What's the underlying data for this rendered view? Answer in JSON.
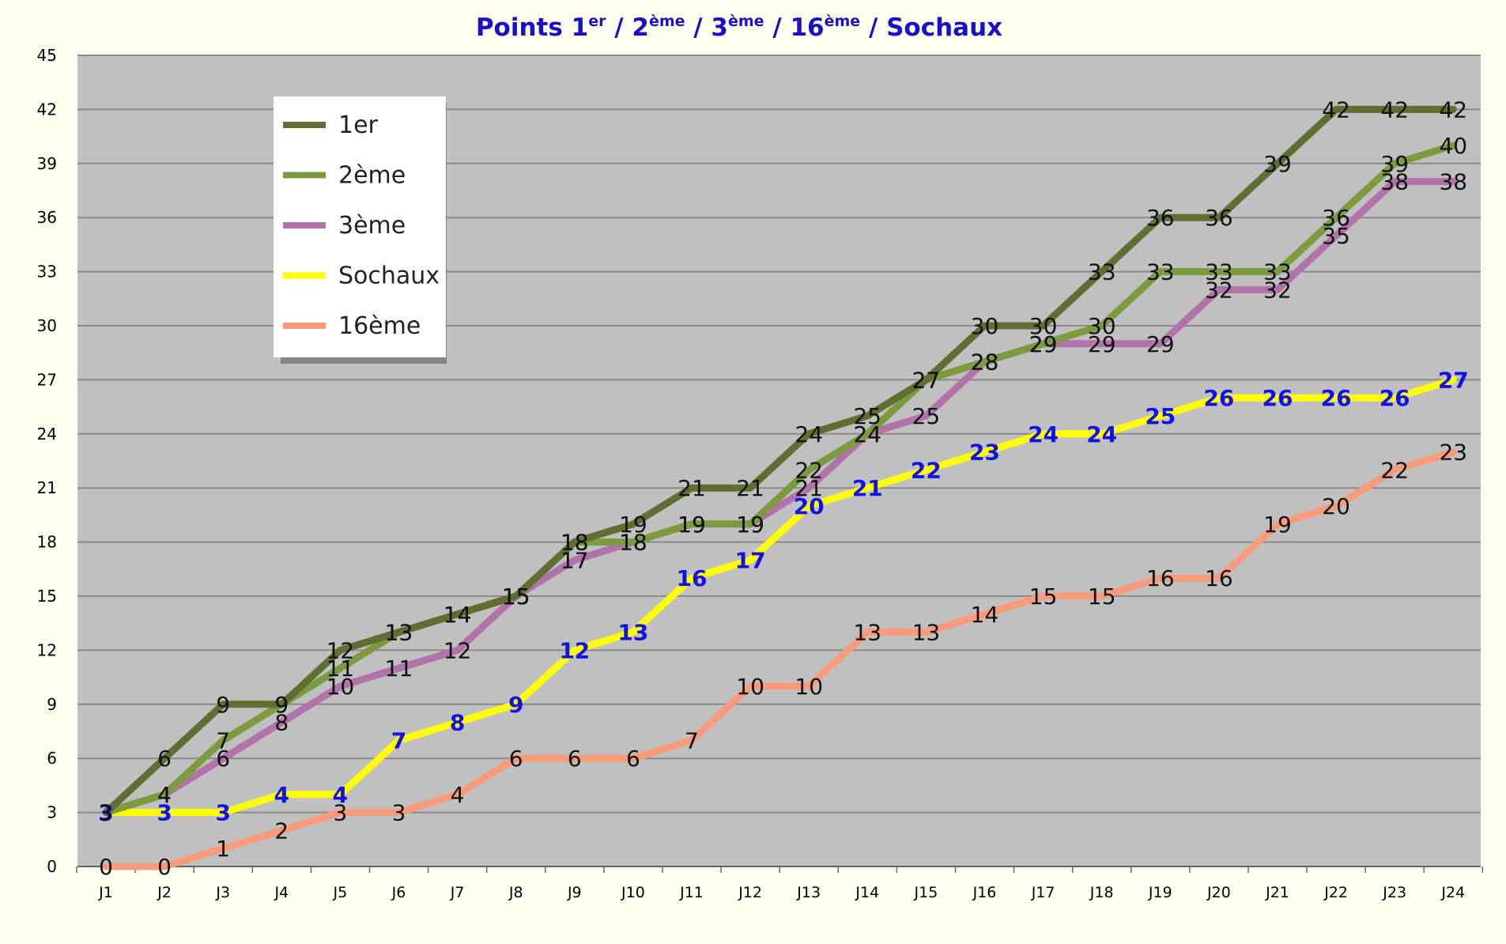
{
  "chart_data": {
    "type": "line",
    "title_parts": [
      {
        "text": "Points 1",
        "sup": false
      },
      {
        "text": "er",
        "sup": true
      },
      {
        "text": " / 2",
        "sup": false
      },
      {
        "text": "ème",
        "sup": true
      },
      {
        "text": " / 3",
        "sup": false
      },
      {
        "text": "ème",
        "sup": true
      },
      {
        "text": " / 16",
        "sup": false
      },
      {
        "text": "ème",
        "sup": true
      },
      {
        "text": " / Sochaux",
        "sup": false
      }
    ],
    "categories": [
      "J1",
      "J2",
      "J3",
      "J4",
      "J5",
      "J6",
      "J7",
      "J8",
      "J9",
      "J10",
      "J11",
      "J12",
      "J13",
      "J14",
      "J15",
      "J16",
      "J17",
      "J18",
      "J19",
      "J20",
      "J21",
      "J22",
      "J23",
      "J24"
    ],
    "ylim": [
      0,
      45
    ],
    "yticks": [
      0,
      3,
      6,
      9,
      12,
      15,
      18,
      21,
      24,
      27,
      30,
      33,
      36,
      39,
      42,
      45
    ],
    "grid": true,
    "legend_position": "top-left",
    "background_color": "#c0c0c0",
    "series": [
      {
        "name": "1er",
        "color": "#5f6f31",
        "label_style": "normal",
        "values": [
          3,
          6,
          9,
          9,
          12,
          13,
          14,
          15,
          18,
          19,
          21,
          21,
          24,
          25,
          27,
          30,
          30,
          33,
          36,
          36,
          39,
          42,
          42,
          42
        ]
      },
      {
        "name": "2ème",
        "color": "#7c9a3e",
        "label_style": "normal",
        "values": [
          3,
          4,
          7,
          9,
          11,
          13,
          14,
          15,
          18,
          18,
          19,
          19,
          22,
          24,
          27,
          28,
          29,
          30,
          33,
          33,
          33,
          36,
          39,
          40
        ]
      },
      {
        "name": "3ème",
        "color": "#b173a9",
        "label_style": "normal",
        "values": [
          3,
          4,
          6,
          8,
          10,
          11,
          12,
          15,
          17,
          18,
          19,
          19,
          21,
          24,
          25,
          28,
          29,
          29,
          29,
          32,
          32,
          35,
          38,
          38
        ]
      },
      {
        "name": "Sochaux",
        "color": "#ffff00",
        "label_style": "blue",
        "values": [
          3,
          3,
          3,
          4,
          4,
          7,
          8,
          9,
          12,
          13,
          16,
          17,
          20,
          21,
          22,
          23,
          24,
          24,
          25,
          26,
          26,
          26,
          26,
          27
        ]
      },
      {
        "name": "16ème",
        "color": "#f79b7a",
        "label_style": "normal",
        "values": [
          0,
          0,
          1,
          2,
          3,
          3,
          4,
          6,
          6,
          6,
          7,
          10,
          10,
          13,
          13,
          14,
          15,
          15,
          16,
          16,
          19,
          20,
          22,
          23
        ]
      }
    ]
  }
}
